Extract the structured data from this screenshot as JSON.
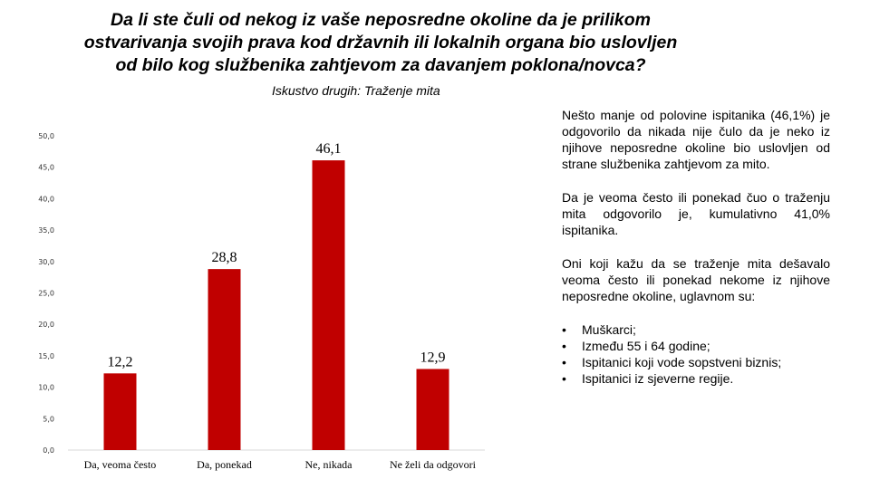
{
  "header": {
    "title_lines": [
      "Da li ste čuli od nekog iz vaše neposredne okoline da je prilikom",
      "ostvarivanja svojih prava kod državnih ili lokalnih organa bio uslovljen",
      "od bilo kog službenika zahtjevom za davanjem poklona/novca?"
    ]
  },
  "chart_data": {
    "type": "bar",
    "title": "Iskustvo drugih: Traženje mita",
    "categories": [
      "Da, veoma često",
      "Da, ponekad",
      "Ne, nikada",
      "Ne želi da odgovori"
    ],
    "values": [
      12.2,
      28.8,
      46.1,
      12.9
    ],
    "value_labels": [
      "12,2",
      "28,8",
      "46,1",
      "12,9"
    ],
    "ylim": [
      0,
      50
    ],
    "yticks": [
      "0,0",
      "5,0",
      "10,0",
      "15,0",
      "20,0",
      "25,0",
      "30,0",
      "35,0",
      "40,0",
      "45,0",
      "50,0"
    ],
    "xlabel": "",
    "ylabel": "",
    "bar_color": "#c00000",
    "grid": false
  },
  "notes": {
    "p1": "Nešto manje od polovine ispitanika (46,1%) je odgovorilo da nikada nije čulo da je neko iz njihove neposredne okoline bio uslovljen od strane službenika zahtjevom za mito.",
    "p2": "Da je veoma često ili ponekad čuo o traženju mita odgovorilo je, kumulativno 41,0% ispitanika.",
    "p3": "Oni koji kažu da se traženje mita dešavalo veoma često ili ponekad nekome iz njihove neposredne okoline, uglavnom su:",
    "bullets": [
      "Muškarci;",
      "Između 55 i 64 godine;",
      "Ispitanici koji vode sopstveni biznis;",
      "Ispitanici iz sjeverne regije."
    ]
  }
}
